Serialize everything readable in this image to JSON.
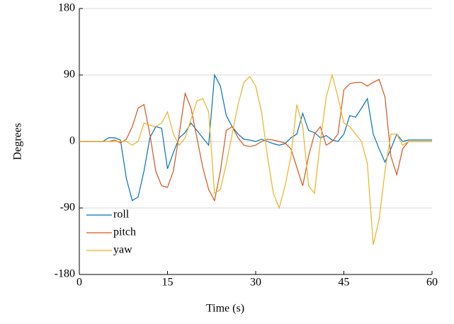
{
  "chart_data": {
    "type": "line",
    "xlabel": "Time (s)",
    "ylabel": "Degrees",
    "x": [
      0,
      1,
      2,
      3,
      4,
      5,
      6,
      7,
      8,
      9,
      10,
      11,
      12,
      13,
      14,
      15,
      16,
      17,
      18,
      19,
      20,
      21,
      22,
      23,
      24,
      25,
      26,
      27,
      28,
      29,
      30,
      31,
      32,
      33,
      34,
      35,
      36,
      37,
      38,
      39,
      40,
      41,
      42,
      43,
      44,
      45,
      46,
      47,
      48,
      49,
      50,
      51,
      52,
      53,
      54,
      55,
      56,
      57,
      58,
      59,
      60
    ],
    "series": [
      {
        "name": "roll",
        "color": "#0072BD",
        "values": [
          0,
          0,
          0,
          0,
          0,
          5,
          5,
          2,
          -50,
          -80,
          -75,
          -40,
          5,
          20,
          18,
          -37,
          -15,
          5,
          12,
          25,
          15,
          5,
          -5,
          90,
          75,
          35,
          20,
          10,
          3,
          2,
          0,
          3,
          0,
          -3,
          -5,
          -3,
          5,
          10,
          38,
          15,
          12,
          5,
          8,
          2,
          0,
          10,
          35,
          33,
          45,
          58,
          10,
          -10,
          -28,
          -10,
          10,
          0,
          2,
          2,
          2,
          2,
          2
        ]
      },
      {
        "name": "pitch",
        "color": "#D95319",
        "values": [
          0,
          0,
          0,
          0,
          0,
          0,
          2,
          -2,
          3,
          20,
          45,
          50,
          10,
          -40,
          -60,
          -62,
          -40,
          10,
          65,
          45,
          5,
          -35,
          -65,
          -80,
          -40,
          15,
          20,
          5,
          -5,
          -7,
          -5,
          0,
          3,
          2,
          0,
          -2,
          -10,
          -35,
          -60,
          -20,
          10,
          20,
          -5,
          0,
          10,
          70,
          78,
          80,
          80,
          75,
          80,
          84,
          60,
          -20,
          -45,
          -10,
          0,
          0,
          0,
          0,
          0
        ]
      },
      {
        "name": "yaw",
        "color": "#EDB120",
        "values": [
          0,
          0,
          0,
          0,
          0,
          0,
          0,
          0,
          0,
          -5,
          0,
          25,
          22,
          20,
          25,
          40,
          10,
          -5,
          5,
          30,
          55,
          58,
          40,
          -70,
          -65,
          -30,
          10,
          50,
          80,
          88,
          75,
          40,
          -20,
          -70,
          -90,
          -60,
          -20,
          50,
          20,
          -60,
          -70,
          0,
          60,
          90,
          60,
          25,
          20,
          10,
          0,
          -30,
          -140,
          -105,
          -40,
          10,
          10,
          -5,
          0,
          0,
          0,
          0,
          0
        ]
      }
    ],
    "xlim": [
      0,
      60
    ],
    "xticks": [
      0,
      15,
      30,
      45,
      60
    ],
    "ylim": [
      -180,
      180
    ],
    "yticks": [
      -180,
      -90,
      0,
      90,
      180
    ],
    "grid": true,
    "legend": "lower-left"
  }
}
